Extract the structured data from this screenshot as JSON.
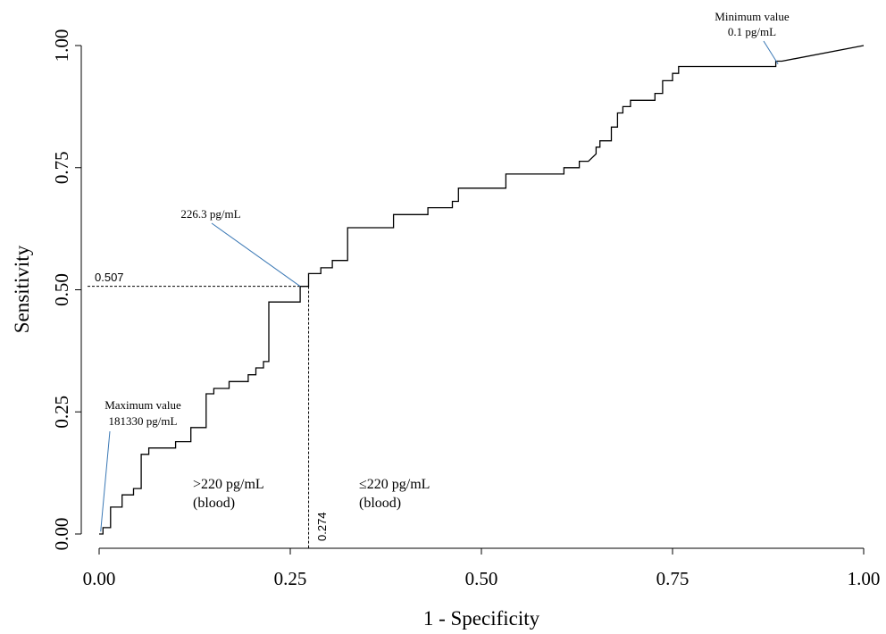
{
  "chart_data": {
    "type": "line",
    "title": "",
    "xlabel": "1 - Specificity",
    "ylabel": "Sensitivity",
    "xlim": [
      0,
      1
    ],
    "ylim": [
      0,
      1
    ],
    "x_ticks": [
      "0.00",
      "0.25",
      "0.50",
      "0.75",
      "1.00"
    ],
    "y_ticks": [
      "0.00",
      "0.25",
      "0.50",
      "0.75",
      "1.00"
    ],
    "grid": false,
    "legend": "none",
    "line_color": "#000000",
    "callout_color": "#3a78b5",
    "series": [
      {
        "points": [
          [
            0.0,
            0.0
          ],
          [
            0.005,
            0.0
          ],
          [
            0.005,
            0.013
          ],
          [
            0.015,
            0.013
          ],
          [
            0.015,
            0.055
          ],
          [
            0.03,
            0.055
          ],
          [
            0.03,
            0.08
          ],
          [
            0.045,
            0.08
          ],
          [
            0.045,
            0.093
          ],
          [
            0.055,
            0.093
          ],
          [
            0.055,
            0.163
          ],
          [
            0.065,
            0.163
          ],
          [
            0.065,
            0.176
          ],
          [
            0.1,
            0.176
          ],
          [
            0.1,
            0.189
          ],
          [
            0.12,
            0.189
          ],
          [
            0.12,
            0.218
          ],
          [
            0.14,
            0.218
          ],
          [
            0.14,
            0.287
          ],
          [
            0.15,
            0.287
          ],
          [
            0.15,
            0.298
          ],
          [
            0.17,
            0.298
          ],
          [
            0.17,
            0.312
          ],
          [
            0.195,
            0.312
          ],
          [
            0.195,
            0.326
          ],
          [
            0.205,
            0.326
          ],
          [
            0.205,
            0.34
          ],
          [
            0.215,
            0.34
          ],
          [
            0.215,
            0.353
          ],
          [
            0.222,
            0.353
          ],
          [
            0.222,
            0.475
          ],
          [
            0.263,
            0.475
          ],
          [
            0.263,
            0.507
          ],
          [
            0.274,
            0.507
          ],
          [
            0.274,
            0.533
          ],
          [
            0.29,
            0.533
          ],
          [
            0.29,
            0.545
          ],
          [
            0.305,
            0.545
          ],
          [
            0.305,
            0.56
          ],
          [
            0.325,
            0.56
          ],
          [
            0.325,
            0.627
          ],
          [
            0.385,
            0.627
          ],
          [
            0.385,
            0.654
          ],
          [
            0.43,
            0.654
          ],
          [
            0.43,
            0.668
          ],
          [
            0.462,
            0.668
          ],
          [
            0.462,
            0.681
          ],
          [
            0.47,
            0.681
          ],
          [
            0.47,
            0.708
          ],
          [
            0.532,
            0.708
          ],
          [
            0.532,
            0.737
          ],
          [
            0.608,
            0.737
          ],
          [
            0.608,
            0.75
          ],
          [
            0.628,
            0.75
          ],
          [
            0.628,
            0.763
          ],
          [
            0.64,
            0.763
          ],
          [
            0.65,
            0.778
          ],
          [
            0.65,
            0.792
          ],
          [
            0.655,
            0.792
          ],
          [
            0.655,
            0.805
          ],
          [
            0.67,
            0.805
          ],
          [
            0.67,
            0.833
          ],
          [
            0.678,
            0.833
          ],
          [
            0.678,
            0.862
          ],
          [
            0.685,
            0.862
          ],
          [
            0.685,
            0.875
          ],
          [
            0.695,
            0.875
          ],
          [
            0.695,
            0.888
          ],
          [
            0.727,
            0.888
          ],
          [
            0.727,
            0.902
          ],
          [
            0.737,
            0.902
          ],
          [
            0.737,
            0.928
          ],
          [
            0.75,
            0.928
          ],
          [
            0.75,
            0.943
          ],
          [
            0.758,
            0.943
          ],
          [
            0.758,
            0.957
          ],
          [
            0.885,
            0.957
          ],
          [
            0.885,
            0.968
          ],
          [
            0.893,
            0.968
          ],
          [
            1.0,
            1.0
          ]
        ]
      }
    ],
    "reference_point": {
      "x": 0.274,
      "y": 0.507
    },
    "annotations": {
      "max_line1": "Maximum value",
      "max_line2": "181330 pg/mL",
      "min_line1": "Minimum value",
      "min_line2": "0.1 pg/mL",
      "cutoff": "226.3 pg/mL",
      "y_ref": "0.507",
      "x_ref": "0.274",
      "left_region_line1": ">220 pg/mL",
      "left_region_line2": "(blood)",
      "right_region_line1": "≤220 pg/mL",
      "right_region_line2": "(blood)"
    }
  }
}
